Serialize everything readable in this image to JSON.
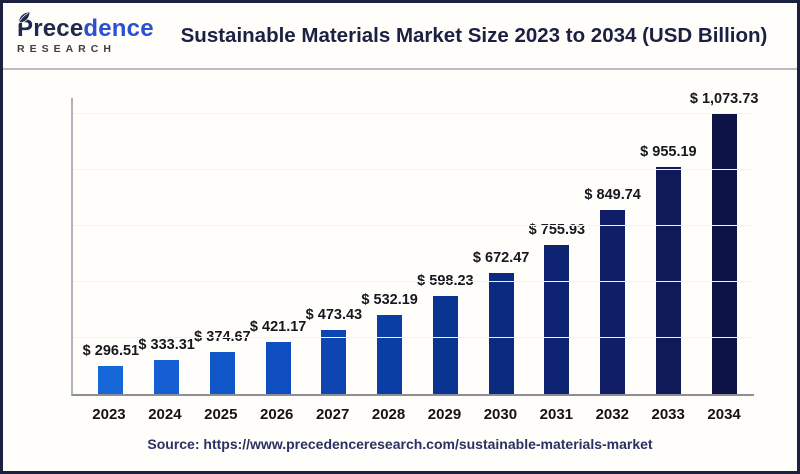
{
  "header": {
    "logo": {
      "name_part1": "Prece",
      "name_part2": "dence",
      "subtitle": "RESEARCH",
      "name_color1": "#20294e",
      "name_color2": "#2b50d0",
      "subtitle_color": "#3f3f42"
    },
    "title": "Sustainable Materials Market Size 2023 to 2034 (USD Billion)"
  },
  "chart_data": {
    "type": "bar",
    "title": "Sustainable Materials Market Size 2023 to 2034 (USD Billion)",
    "unit": "USD Billion",
    "categories": [
      "2023",
      "2024",
      "2025",
      "2026",
      "2027",
      "2028",
      "2029",
      "2030",
      "2031",
      "2032",
      "2033",
      "2034"
    ],
    "values": [
      296.51,
      333.31,
      374.67,
      421.17,
      473.43,
      532.19,
      598.23,
      672.47,
      755.93,
      849.74,
      955.19,
      1073.73
    ],
    "value_labels": [
      "$ 296.51",
      "$ 333.31",
      "$ 374.67",
      "$ 421.17",
      "$ 473.43",
      "$ 532.19",
      "$ 598.23",
      "$ 672.47",
      "$ 755.93",
      "$ 849.74",
      "$ 955.19",
      "$ 1,073.73"
    ],
    "bar_colors": [
      "#1668D9",
      "#1460D2",
      "#1257CA",
      "#0F4EC0",
      "#0D46B2",
      "#0B3EA4",
      "#0A3492",
      "#0B2B80",
      "#0E2372",
      "#0F1E66",
      "#101A58",
      "#0D1347"
    ],
    "xlabel": "",
    "ylabel": "",
    "ylim": [
      0,
      1100
    ],
    "grid": "faint-horizontal",
    "legend": "none"
  },
  "footer": {
    "source": "Source: https://www.precedenceresearch.com/sustainable-materials-market"
  }
}
